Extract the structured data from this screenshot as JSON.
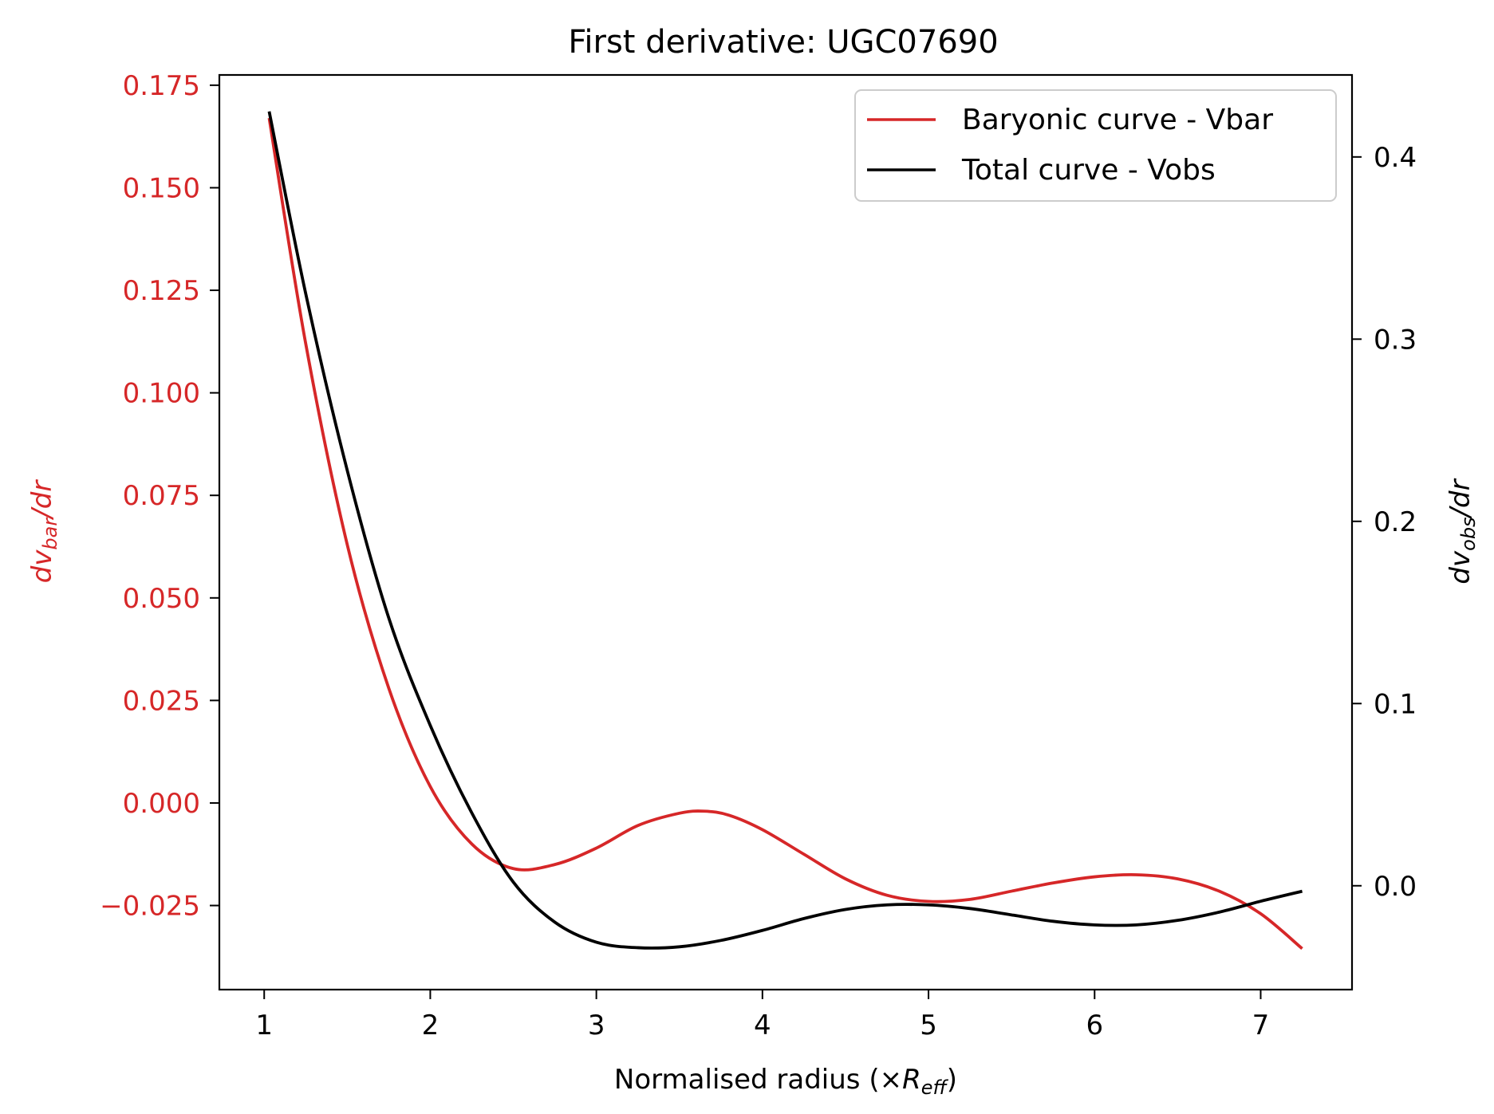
{
  "chart_data": {
    "type": "line",
    "title": "First derivative: UGC07690",
    "xlabel": "Normalised radius (×R_eff)",
    "xlabel_parts": {
      "main": "Normalised radius (×",
      "sym": "R",
      "sub": "eff",
      "close": ")"
    },
    "ylabel_left_parts": {
      "a": "dv",
      "sub": "bar",
      "b": "/dr"
    },
    "ylabel_right_parts": {
      "a": "dv",
      "sub": "obs",
      "b": "/dr"
    },
    "xlim": [
      0.73,
      7.55
    ],
    "ylim_left": [
      -0.0455,
      0.1775
    ],
    "ylim_right": [
      -0.057,
      0.445
    ],
    "x_ticks": [
      1,
      2,
      3,
      4,
      5,
      6,
      7
    ],
    "x_tick_labels": [
      "1",
      "2",
      "3",
      "4",
      "5",
      "6",
      "7"
    ],
    "y_left_ticks": [
      -0.025,
      0.0,
      0.025,
      0.05,
      0.075,
      0.1,
      0.125,
      0.15,
      0.175
    ],
    "y_left_tick_labels": [
      "−0.025",
      "0.000",
      "0.025",
      "0.050",
      "0.075",
      "0.100",
      "0.125",
      "0.150",
      "0.175"
    ],
    "y_right_ticks": [
      0.0,
      0.1,
      0.2,
      0.3,
      0.4
    ],
    "y_right_tick_labels": [
      "0.0",
      "0.1",
      "0.2",
      "0.3",
      "0.4"
    ],
    "legend_position": "top-right",
    "colors": {
      "left_axis": "#d62728",
      "vbar": "#d62728",
      "vobs": "#000000"
    },
    "series": [
      {
        "name": "Baryonic curve - Vbar",
        "axis": "left",
        "color": "#d62728",
        "x": [
          1.03,
          1.25,
          1.5,
          1.75,
          2.0,
          2.25,
          2.5,
          2.75,
          3.0,
          3.25,
          3.5,
          3.65,
          3.8,
          4.0,
          4.25,
          4.5,
          4.75,
          5.0,
          5.25,
          5.5,
          5.75,
          6.0,
          6.25,
          6.5,
          6.75,
          7.0,
          7.25
        ],
        "values": [
          0.167,
          0.112,
          0.063,
          0.028,
          0.004,
          -0.01,
          -0.016,
          -0.015,
          -0.011,
          -0.0055,
          -0.0025,
          -0.002,
          -0.003,
          -0.0065,
          -0.0125,
          -0.0185,
          -0.0225,
          -0.024,
          -0.0235,
          -0.0215,
          -0.0195,
          -0.018,
          -0.0175,
          -0.0185,
          -0.0215,
          -0.027,
          -0.0355
        ]
      },
      {
        "name": "Total curve - Vobs",
        "axis": "right",
        "color": "#000000",
        "x": [
          1.03,
          1.25,
          1.5,
          1.75,
          2.0,
          2.25,
          2.5,
          2.75,
          3.0,
          3.25,
          3.5,
          3.75,
          4.0,
          4.25,
          4.5,
          4.75,
          5.0,
          5.25,
          5.5,
          5.75,
          6.0,
          6.25,
          6.5,
          6.75,
          7.0,
          7.25
        ],
        "values": [
          0.425,
          0.325,
          0.228,
          0.147,
          0.088,
          0.04,
          0.002,
          -0.02,
          -0.031,
          -0.034,
          -0.0335,
          -0.03,
          -0.0245,
          -0.018,
          -0.013,
          -0.0105,
          -0.0105,
          -0.0125,
          -0.016,
          -0.0195,
          -0.0215,
          -0.0215,
          -0.019,
          -0.0145,
          -0.0085,
          -0.003
        ]
      }
    ]
  }
}
